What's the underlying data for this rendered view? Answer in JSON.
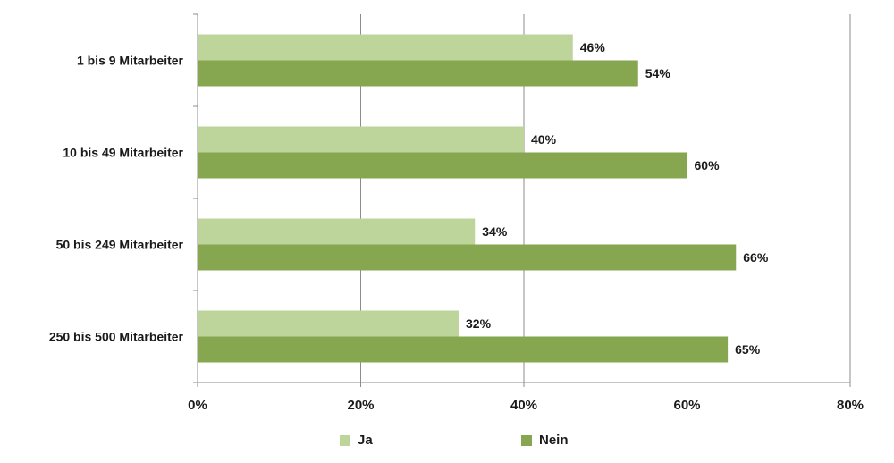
{
  "chart_data": {
    "type": "bar",
    "orientation": "horizontal",
    "categories": [
      "1 bis 9 Mitarbeiter",
      "10 bis 49 Mitarbeiter",
      "50 bis 249 Mitarbeiter",
      "250 bis 500 Mitarbeiter"
    ],
    "series": [
      {
        "name": "Ja",
        "values": [
          46,
          40,
          34,
          32
        ],
        "labels": [
          "46%",
          "40%",
          "34%",
          "32%"
        ],
        "color": "#bdd49b"
      },
      {
        "name": "Nein",
        "values": [
          54,
          60,
          66,
          65
        ],
        "labels": [
          "54%",
          "60%",
          "66%",
          "65%"
        ],
        "color": "#86a64f"
      }
    ],
    "xlim": [
      0,
      80
    ],
    "xticks": [
      0,
      20,
      40,
      60,
      80
    ],
    "xtick_labels": [
      "0%",
      "20%",
      "40%",
      "60%",
      "80%"
    ],
    "grid": true,
    "legend_position": "bottom"
  }
}
